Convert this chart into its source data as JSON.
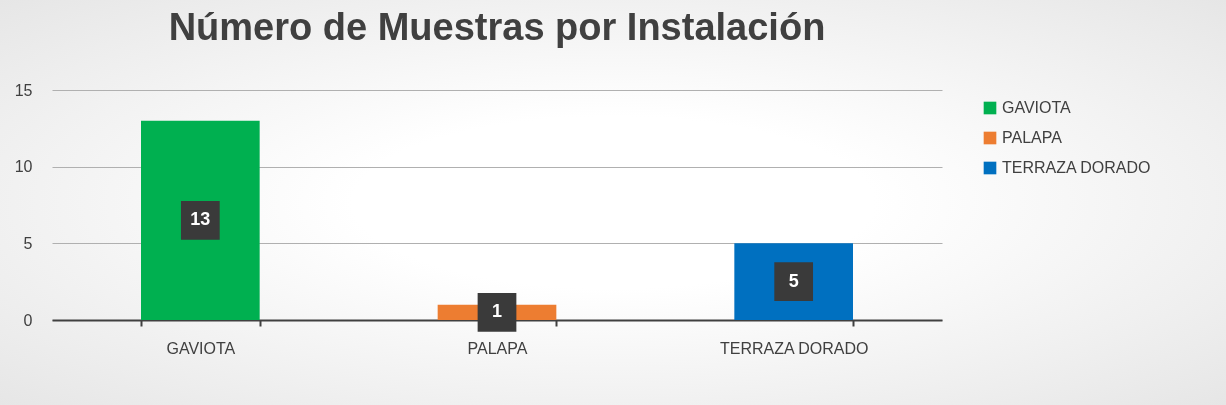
{
  "chart_data": {
    "type": "bar",
    "title": "Número de Muestras por Instalación",
    "categories": [
      "GAVIOTA",
      "PALAPA",
      "TERRAZA DORADO"
    ],
    "series": [
      {
        "name": "GAVIOTA",
        "color": "#00b050",
        "values": [
          13,
          null,
          null
        ]
      },
      {
        "name": "PALAPA",
        "color": "#ed7d31",
        "values": [
          null,
          1,
          null
        ]
      },
      {
        "name": "TERRAZA DORADO",
        "color": "#0070c0",
        "values": [
          null,
          null,
          5
        ]
      }
    ],
    "ylim": [
      0,
      15
    ],
    "yticks": [
      0,
      5,
      10,
      15
    ],
    "grid": "y",
    "legend": "right",
    "data_labels": true
  }
}
